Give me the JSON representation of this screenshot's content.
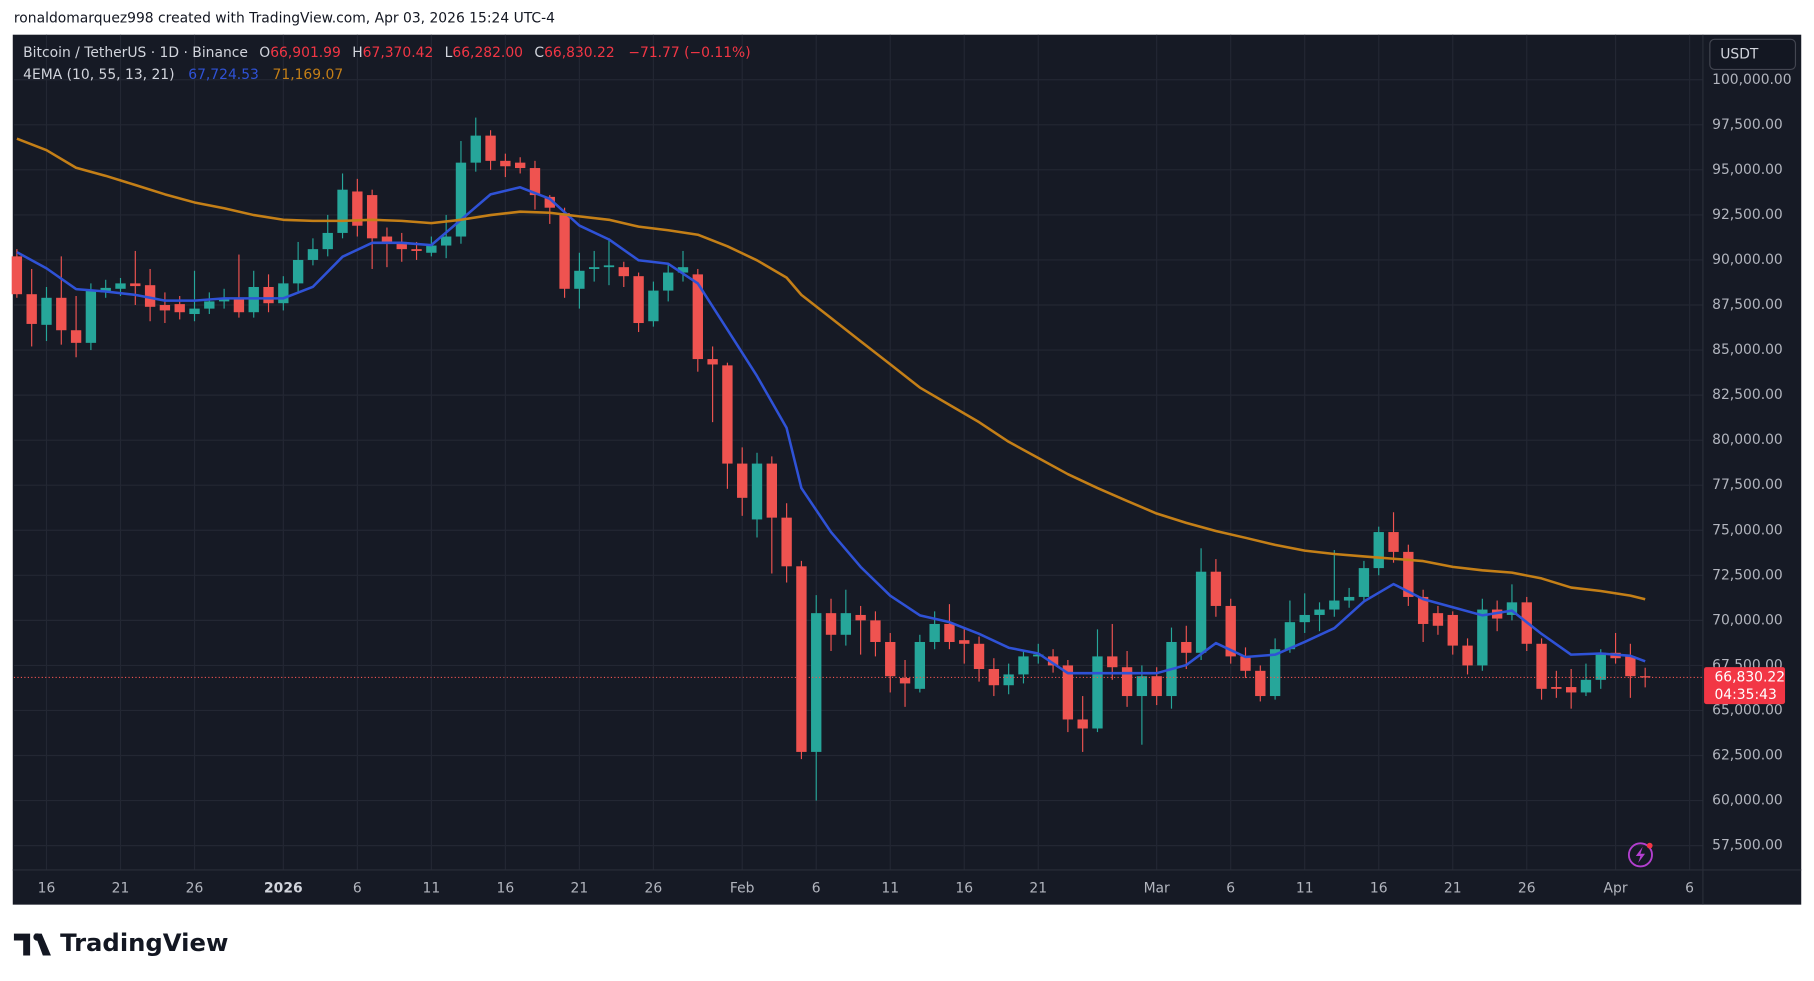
{
  "header": "ronaldomarquez998 created with TradingView.com, Apr 03, 2026 15:24 UTC-4",
  "footer": {
    "logo": "TradingView"
  },
  "chart_data": {
    "type": "candlestick",
    "legend": {
      "symbol": "Bitcoin / TetherUS · 1D · Binance",
      "o_label": "O",
      "o": "66,901.99",
      "h_label": "H",
      "h": "67,370.42",
      "l_label": "L",
      "l": "66,282.00",
      "c_label": "C",
      "c": "66,830.22",
      "change": "−71.77 (−0.11%)",
      "indicator": "4EMA (10, 55, 13, 21)",
      "ema_values": [
        "67,724.53",
        "71,169.07"
      ]
    },
    "currency": "USDT",
    "price_label": {
      "value_label": "66,830.22",
      "countdown": "04:35:43"
    },
    "up_color": "#26a69a",
    "down_color": "#ef5350",
    "open": [
      90200,
      88100,
      86400,
      87900,
      86100,
      85400,
      88200,
      88400,
      88700,
      88600,
      87500,
      87550,
      87000,
      87300,
      87700,
      87900,
      87100,
      88500,
      87600,
      88700,
      90000,
      90600,
      91500,
      93800,
      93600,
      91300,
      91000,
      90600,
      90400,
      90800,
      91300,
      95400,
      96900,
      95500,
      95400,
      95100,
      93500,
      92600,
      88400,
      89500,
      89600,
      89600,
      89100,
      86600,
      88300,
      89300,
      89200,
      84500,
      84150,
      78700,
      75600,
      78700,
      75700,
      73000,
      62700,
      70400,
      69200,
      70300,
      70000,
      68800,
      66800,
      66200,
      68800,
      69800,
      68900,
      68700,
      67300,
      66400,
      67000,
      68000,
      68000,
      67500,
      64500,
      64000,
      68000,
      67400,
      65800,
      66900,
      65800,
      68800,
      68200,
      72700,
      70800,
      68000,
      67200,
      65800,
      68400,
      69900,
      70300,
      70600,
      71100,
      71300,
      72900,
      74900,
      73800,
      71300,
      70400,
      70300,
      68600,
      67500,
      70600,
      70300,
      71000,
      68700,
      66300,
      66300,
      66000,
      66700,
      68200,
      68000,
      66901.99
    ],
    "high": [
      90600,
      89500,
      88500,
      90200,
      88000,
      88700,
      88900,
      89000,
      90500,
      89500,
      88200,
      88000,
      89400,
      88200,
      88400,
      90300,
      89400,
      89200,
      89100,
      91000,
      91200,
      92500,
      94800,
      94500,
      93900,
      91800,
      91500,
      91000,
      91300,
      92500,
      96600,
      97900,
      97200,
      95900,
      95700,
      95500,
      93600,
      92900,
      90400,
      90500,
      91200,
      89900,
      89300,
      88800,
      89800,
      90500,
      89500,
      85200,
      84300,
      79600,
      79300,
      79100,
      76500,
      73300,
      71400,
      71200,
      71700,
      70800,
      70500,
      69300,
      67800,
      69200,
      70500,
      70900,
      69600,
      69100,
      67900,
      67600,
      68300,
      68700,
      68400,
      67800,
      65800,
      69500,
      69800,
      68300,
      67500,
      67400,
      69600,
      69700,
      74000,
      73400,
      71200,
      68500,
      67500,
      69000,
      71100,
      71500,
      71000,
      73900,
      71800,
      73300,
      75200,
      76000,
      74200,
      71700,
      70800,
      70500,
      69000,
      71200,
      71100,
      72000,
      71300,
      69000,
      67200,
      67300,
      67600,
      68400,
      69300,
      68700,
      67370.42
    ],
    "low": [
      87900,
      85200,
      85500,
      85300,
      84600,
      85000,
      87900,
      88000,
      87500,
      86600,
      86500,
      86700,
      86600,
      87000,
      87300,
      86800,
      86800,
      87100,
      87200,
      88200,
      89700,
      90200,
      91200,
      91300,
      89500,
      89600,
      89900,
      90000,
      90200,
      90100,
      90900,
      94900,
      95000,
      94600,
      94800,
      92800,
      92000,
      87900,
      87300,
      88800,
      88600,
      88500,
      86000,
      86300,
      87700,
      88800,
      83800,
      81000,
      77300,
      75800,
      74600,
      72600,
      72100,
      62300,
      60000,
      68300,
      68600,
      68100,
      68000,
      66000,
      65200,
      66000,
      68400,
      68400,
      67600,
      66600,
      65800,
      65900,
      66500,
      67600,
      67100,
      63800,
      62700,
      63800,
      66700,
      65200,
      63100,
      65300,
      65100,
      67300,
      67800,
      70200,
      67600,
      66800,
      65500,
      65600,
      68200,
      69300,
      69400,
      70200,
      70700,
      71000,
      72500,
      73200,
      70800,
      68800,
      69200,
      68100,
      67000,
      67200,
      69400,
      70000,
      68300,
      65600,
      65700,
      65100,
      65800,
      66200,
      67600,
      65700,
      66282
    ],
    "close": [
      88100,
      86450,
      87900,
      86100,
      85400,
      88300,
      88450,
      88700,
      88550,
      87400,
      87200,
      87100,
      87300,
      87700,
      87900,
      87100,
      88500,
      87600,
      88700,
      90000,
      90600,
      91500,
      93900,
      91900,
      91200,
      91000,
      90600,
      90500,
      90800,
      91300,
      95400,
      96900,
      95500,
      95200,
      95100,
      93600,
      92900,
      88400,
      89400,
      89600,
      89700,
      89100,
      86500,
      88300,
      89300,
      89600,
      84500,
      84200,
      78700,
      76800,
      78700,
      75700,
      73000,
      62700,
      70400,
      69200,
      70400,
      70000,
      68800,
      66900,
      66500,
      68800,
      69800,
      68800,
      68700,
      67300,
      66400,
      67000,
      68000,
      68100,
      67500,
      64500,
      64000,
      68000,
      67400,
      65800,
      66900,
      65800,
      68800,
      68200,
      72700,
      70800,
      68000,
      67200,
      65800,
      68400,
      69900,
      70300,
      70600,
      71100,
      71300,
      72900,
      74900,
      73800,
      71300,
      69800,
      69700,
      68600,
      67500,
      70600,
      70100,
      71000,
      68700,
      66200,
      66200,
      66000,
      66700,
      68200,
      67900,
      66901.99,
      66830.22
    ],
    "series": [
      {
        "color": "#2f52d6",
        "x": [
          0,
          2,
          4,
          6,
          8,
          10,
          12,
          14,
          16,
          18,
          20,
          22,
          24,
          26,
          28,
          30,
          32,
          34,
          36,
          38,
          40,
          42,
          44,
          46,
          48,
          50,
          52,
          53,
          55,
          57,
          59,
          61,
          63,
          65,
          67,
          69,
          71,
          73,
          75,
          77,
          79,
          81,
          83,
          85,
          87,
          89,
          91,
          93,
          95,
          97,
          99,
          101,
          103,
          105,
          107,
          109,
          110
        ],
        "values": [
          90430,
          89530,
          88380,
          88250,
          88060,
          87740,
          87740,
          87870,
          87870,
          87870,
          88510,
          90180,
          90950,
          90950,
          90820,
          92230,
          93640,
          94030,
          93390,
          91910,
          91140,
          89980,
          89790,
          88700,
          86130,
          83560,
          80680,
          77340,
          74900,
          72970,
          71370,
          70280,
          69900,
          69250,
          68480,
          68160,
          67070,
          67070,
          67070,
          67070,
          67520,
          68740,
          67970,
          68100,
          68800,
          69570,
          71050,
          72010,
          71180,
          70730,
          70280,
          70540,
          69250,
          68100,
          68160,
          68030,
          67724.53
        ]
      },
      {
        "color": "#c47f17",
        "x": [
          0,
          2,
          4,
          6,
          8,
          10,
          12,
          14,
          16,
          18,
          20,
          22,
          24,
          26,
          28,
          30,
          32,
          34,
          36,
          38,
          40,
          42,
          44,
          46,
          48,
          50,
          52,
          53,
          55,
          57,
          59,
          61,
          63,
          65,
          67,
          69,
          71,
          73,
          75,
          77,
          79,
          81,
          83,
          85,
          87,
          89,
          91,
          93,
          95,
          97,
          99,
          101,
          103,
          105,
          107,
          109,
          110
        ],
        "values": [
          96730,
          96090,
          95120,
          94670,
          94160,
          93640,
          93190,
          92870,
          92490,
          92230,
          92170,
          92170,
          92230,
          92170,
          92040,
          92230,
          92490,
          92680,
          92620,
          92420,
          92230,
          91850,
          91650,
          91400,
          90760,
          89980,
          89020,
          88060,
          86780,
          85490,
          84210,
          82920,
          81960,
          81000,
          79910,
          79010,
          78110,
          77340,
          76630,
          75930,
          75410,
          74960,
          74580,
          74190,
          73870,
          73680,
          73550,
          73420,
          73290,
          72970,
          72780,
          72650,
          72330,
          71820,
          71630,
          71370,
          71169.07
        ]
      }
    ],
    "xlim": [
      -0.2,
      113.9
    ],
    "xticks": [
      {
        "value": 2,
        "label": "16"
      },
      {
        "value": 7,
        "label": "21"
      },
      {
        "value": 12,
        "label": "26"
      },
      {
        "value": 18,
        "label": "2026",
        "bold": true
      },
      {
        "value": 23,
        "label": "6"
      },
      {
        "value": 28,
        "label": "11"
      },
      {
        "value": 33,
        "label": "16"
      },
      {
        "value": 38,
        "label": "21"
      },
      {
        "value": 43,
        "label": "26"
      },
      {
        "value": 49,
        "label": "Feb"
      },
      {
        "value": 54,
        "label": "6"
      },
      {
        "value": 59,
        "label": "11"
      },
      {
        "value": 64,
        "label": "16"
      },
      {
        "value": 69,
        "label": "21"
      },
      {
        "value": 77,
        "label": "Mar"
      },
      {
        "value": 82,
        "label": "6"
      },
      {
        "value": 87,
        "label": "11"
      },
      {
        "value": 92,
        "label": "16"
      },
      {
        "value": 97,
        "label": "21"
      },
      {
        "value": 102,
        "label": "26"
      },
      {
        "value": 108,
        "label": "Apr"
      },
      {
        "value": 113,
        "label": "6"
      }
    ],
    "ylim": [
      56150,
      102500
    ],
    "yticks": [
      {
        "value": 57500,
        "label": "57,500.00"
      },
      {
        "value": 60000,
        "label": "60,000.00"
      },
      {
        "value": 62500,
        "label": "62,500.00"
      },
      {
        "value": 65000,
        "label": "65,000.00"
      },
      {
        "value": 67500,
        "label": "67,500.00"
      },
      {
        "value": 70000,
        "label": "70,000.00"
      },
      {
        "value": 72500,
        "label": "72,500.00"
      },
      {
        "value": 75000,
        "label": "75,000.00"
      },
      {
        "value": 77500,
        "label": "77,500.00"
      },
      {
        "value": 80000,
        "label": "80,000.00"
      },
      {
        "value": 82500,
        "label": "82,500.00"
      },
      {
        "value": 85000,
        "label": "85,000.00"
      },
      {
        "value": 87500,
        "label": "87,500.00"
      },
      {
        "value": 90000,
        "label": "90,000.00"
      },
      {
        "value": 92500,
        "label": "92,500.00"
      },
      {
        "value": 95000,
        "label": "95,000.00"
      },
      {
        "value": 97500,
        "label": "97,500.00"
      },
      {
        "value": 100000,
        "label": "100,000.00"
      }
    ],
    "grid": true
  }
}
